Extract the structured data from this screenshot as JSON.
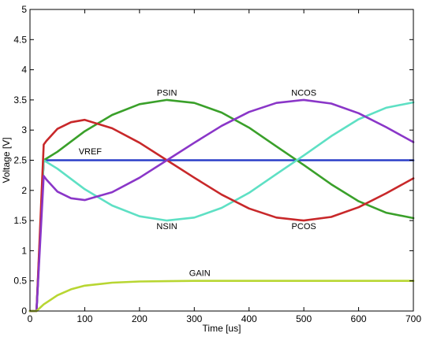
{
  "chart_data": {
    "type": "line",
    "title": "",
    "xlabel": "Time [us]",
    "ylabel": "Voltage [V]",
    "xlim": [
      0,
      700
    ],
    "ylim": [
      0,
      5
    ],
    "xticks": [
      0,
      100,
      200,
      300,
      400,
      500,
      600,
      700
    ],
    "yticks": [
      0,
      0.5,
      1,
      1.5,
      2,
      2.5,
      3,
      3.5,
      4,
      4.5,
      5
    ],
    "ytick_labels": [
      "0",
      "0.5",
      "1",
      "1.5",
      "2",
      "2.5",
      "3",
      "3.5",
      "4",
      "4.5",
      "5"
    ],
    "grid": false,
    "legend": "none",
    "series": [
      {
        "name": "VREF",
        "color": "#2b3fc8",
        "label_at": [
          110,
          2.6
        ],
        "x": [
          0,
          12,
          25,
          700
        ],
        "y": [
          0,
          0,
          2.5,
          2.5
        ]
      },
      {
        "name": "PSIN",
        "color": "#3aa02a",
        "label_at": [
          250,
          3.57
        ],
        "x": [
          0,
          12,
          25,
          50,
          100,
          150,
          200,
          250,
          300,
          350,
          400,
          450,
          500,
          550,
          600,
          650,
          700
        ],
        "y": [
          0,
          0,
          2.5,
          2.64,
          2.98,
          3.25,
          3.43,
          3.5,
          3.45,
          3.29,
          3.04,
          2.73,
          2.42,
          2.1,
          1.82,
          1.63,
          1.54
        ]
      },
      {
        "name": "NSIN",
        "color": "#5ee0c4",
        "label_at": [
          250,
          1.36
        ],
        "x": [
          0,
          12,
          25,
          50,
          100,
          150,
          200,
          250,
          300,
          350,
          400,
          450,
          500,
          550,
          600,
          650,
          700
        ],
        "y": [
          0,
          0,
          2.5,
          2.36,
          2.02,
          1.75,
          1.57,
          1.5,
          1.55,
          1.71,
          1.96,
          2.27,
          2.58,
          2.9,
          3.18,
          3.37,
          3.46
        ]
      },
      {
        "name": "PCOS",
        "color": "#c8282a",
        "label_at": [
          500,
          1.36
        ],
        "x": [
          0,
          12,
          25,
          30,
          50,
          75,
          100,
          150,
          200,
          250,
          300,
          350,
          400,
          450,
          500,
          550,
          600,
          650,
          700
        ],
        "y": [
          0,
          0,
          2.76,
          2.82,
          3.02,
          3.13,
          3.17,
          3.03,
          2.79,
          2.5,
          2.21,
          1.93,
          1.7,
          1.55,
          1.5,
          1.56,
          1.72,
          1.95,
          2.2
        ]
      },
      {
        "name": "NCOS",
        "color": "#8a36c8",
        "label_at": [
          500,
          3.57
        ],
        "x": [
          0,
          12,
          25,
          30,
          50,
          75,
          100,
          150,
          200,
          250,
          300,
          350,
          400,
          450,
          500,
          550,
          600,
          650,
          700
        ],
        "y": [
          0,
          0,
          2.24,
          2.18,
          1.98,
          1.87,
          1.84,
          1.97,
          2.21,
          2.5,
          2.79,
          3.07,
          3.3,
          3.45,
          3.5,
          3.44,
          3.28,
          3.05,
          2.8
        ]
      },
      {
        "name": "GAIN",
        "color": "#b8d632",
        "label_at": [
          310,
          0.58
        ],
        "x": [
          0,
          12,
          25,
          50,
          75,
          100,
          150,
          200,
          250,
          300,
          400,
          500,
          600,
          700
        ],
        "y": [
          0,
          0,
          0.11,
          0.26,
          0.36,
          0.42,
          0.47,
          0.49,
          0.495,
          0.5,
          0.5,
          0.5,
          0.5,
          0.5
        ]
      }
    ]
  }
}
